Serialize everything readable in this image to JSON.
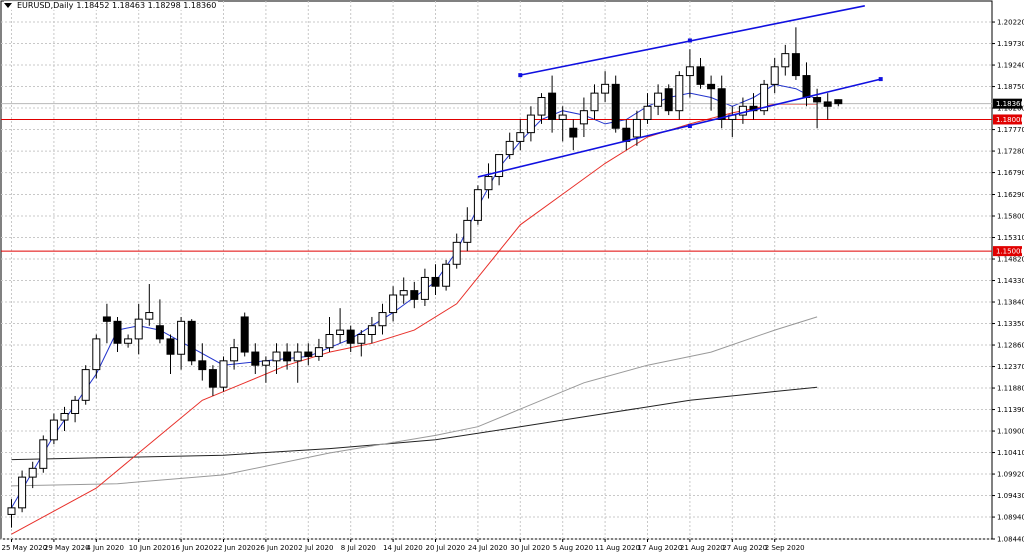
{
  "header": {
    "symbol": "EURUSD,Daily",
    "ohlc": "1.18452 1.18463 1.18298 1.18360"
  },
  "chart_data": {
    "type": "candlestick",
    "symbol": "EURUSD",
    "timeframe": "Daily",
    "ylim": [
      1.0844,
      1.2054
    ],
    "y_ticks": [
      "1.20220",
      "1.19730",
      "1.19240",
      "1.18750",
      "1.18260",
      "1.17770",
      "1.17280",
      "1.16790",
      "1.16290",
      "1.15800",
      "1.15310",
      "1.14820",
      "1.14330",
      "1.13840",
      "1.13350",
      "1.12860",
      "1.12370",
      "1.11880",
      "1.11390",
      "1.10900",
      "1.10410",
      "1.09920",
      "1.09430",
      "1.08940",
      "1.08440"
    ],
    "x_ticks": [
      {
        "label": "25 May 2020",
        "i": 0
      },
      {
        "label": "29 May 2020",
        "i": 4
      },
      {
        "label": "4 Jun 2020",
        "i": 8
      },
      {
        "label": "10 Jun 2020",
        "i": 12
      },
      {
        "label": "16 Jun 2020",
        "i": 16
      },
      {
        "label": "22 Jun 2020",
        "i": 20
      },
      {
        "label": "26 Jun 2020",
        "i": 24
      },
      {
        "label": "2 Jul 2020",
        "i": 28
      },
      {
        "label": "8 Jul 2020",
        "i": 32
      },
      {
        "label": "14 Jul 2020",
        "i": 36
      },
      {
        "label": "20 Jul 2020",
        "i": 40
      },
      {
        "label": "24 Jul 2020",
        "i": 44
      },
      {
        "label": "30 Jul 2020",
        "i": 48
      },
      {
        "label": "5 Aug 2020",
        "i": 52
      },
      {
        "label": "11 Aug 2020",
        "i": 56
      },
      {
        "label": "17 Aug 2020",
        "i": 60
      },
      {
        "label": "21 Aug 2020",
        "i": 64
      },
      {
        "label": "27 Aug 2020",
        "i": 68
      },
      {
        "label": "2 Sep 2020",
        "i": 72
      }
    ],
    "candles": [
      [
        1.09,
        1.0935,
        1.087,
        1.0915
      ],
      [
        1.0915,
        1.1,
        1.0905,
        1.0985
      ],
      [
        1.0985,
        1.102,
        1.096,
        1.1005
      ],
      [
        1.1005,
        1.108,
        1.0995,
        1.107
      ],
      [
        1.107,
        1.113,
        1.106,
        1.1115
      ],
      [
        1.1115,
        1.1145,
        1.109,
        1.113
      ],
      [
        1.113,
        1.117,
        1.111,
        1.116
      ],
      [
        1.116,
        1.124,
        1.115,
        1.123
      ],
      [
        1.123,
        1.131,
        1.121,
        1.13
      ],
      [
        1.135,
        1.138,
        1.129,
        1.134
      ],
      [
        1.134,
        1.135,
        1.127,
        1.129
      ],
      [
        1.129,
        1.131,
        1.128,
        1.13
      ],
      [
        1.13,
        1.138,
        1.1265,
        1.1345
      ],
      [
        1.1345,
        1.1425,
        1.133,
        1.136
      ],
      [
        1.133,
        1.139,
        1.129,
        1.13
      ],
      [
        1.13,
        1.131,
        1.122,
        1.1265
      ],
      [
        1.1265,
        1.135,
        1.123,
        1.134
      ],
      [
        1.134,
        1.1345,
        1.124,
        1.125
      ],
      [
        1.125,
        1.129,
        1.1205,
        1.123
      ],
      [
        1.123,
        1.124,
        1.117,
        1.119
      ],
      [
        1.119,
        1.126,
        1.118,
        1.125
      ],
      [
        1.125,
        1.13,
        1.123,
        1.128
      ],
      [
        1.135,
        1.136,
        1.126,
        1.127
      ],
      [
        1.127,
        1.129,
        1.122,
        1.124
      ],
      [
        1.124,
        1.126,
        1.12,
        1.125
      ],
      [
        1.125,
        1.129,
        1.122,
        1.127
      ],
      [
        1.127,
        1.129,
        1.123,
        1.125
      ],
      [
        1.125,
        1.129,
        1.12,
        1.127
      ],
      [
        1.127,
        1.129,
        1.124,
        1.126
      ],
      [
        1.126,
        1.13,
        1.125,
        1.128
      ],
      [
        1.128,
        1.135,
        1.127,
        1.131
      ],
      [
        1.131,
        1.137,
        1.129,
        1.132
      ],
      [
        1.132,
        1.133,
        1.127,
        1.129
      ],
      [
        1.129,
        1.132,
        1.126,
        1.131
      ],
      [
        1.131,
        1.135,
        1.129,
        1.133
      ],
      [
        1.133,
        1.138,
        1.131,
        1.136
      ],
      [
        1.136,
        1.142,
        1.134,
        1.14
      ],
      [
        1.14,
        1.144,
        1.138,
        1.141
      ],
      [
        1.141,
        1.143,
        1.137,
        1.139
      ],
      [
        1.139,
        1.146,
        1.1375,
        1.144
      ],
      [
        1.144,
        1.147,
        1.14,
        1.142
      ],
      [
        1.142,
        1.148,
        1.141,
        1.147
      ],
      [
        1.147,
        1.154,
        1.146,
        1.152
      ],
      [
        1.152,
        1.16,
        1.15,
        1.157
      ],
      [
        1.157,
        1.165,
        1.156,
        1.164
      ],
      [
        1.164,
        1.17,
        1.162,
        1.167
      ],
      [
        1.167,
        1.172,
        1.165,
        1.172
      ],
      [
        1.172,
        1.177,
        1.171,
        1.175
      ],
      [
        1.175,
        1.18,
        1.173,
        1.177
      ],
      [
        1.177,
        1.183,
        1.175,
        1.181
      ],
      [
        1.181,
        1.186,
        1.179,
        1.185
      ],
      [
        1.186,
        1.19,
        1.177,
        1.18
      ],
      [
        1.18,
        1.183,
        1.175,
        1.181
      ],
      [
        1.178,
        1.18,
        1.173,
        1.176
      ],
      [
        1.179,
        1.185,
        1.176,
        1.182
      ],
      [
        1.182,
        1.188,
        1.18,
        1.186
      ],
      [
        1.186,
        1.191,
        1.184,
        1.188
      ],
      [
        1.188,
        1.19,
        1.177,
        1.178
      ],
      [
        1.178,
        1.18,
        1.173,
        1.175
      ],
      [
        1.176,
        1.182,
        1.174,
        1.18
      ],
      [
        1.18,
        1.186,
        1.179,
        1.183
      ],
      [
        1.183,
        1.188,
        1.181,
        1.186
      ],
      [
        1.187,
        1.188,
        1.181,
        1.182
      ],
      [
        1.182,
        1.191,
        1.18,
        1.19
      ],
      [
        1.19,
        1.196,
        1.185,
        1.192
      ],
      [
        1.192,
        1.194,
        1.187,
        1.188
      ],
      [
        1.188,
        1.19,
        1.182,
        1.187
      ],
      [
        1.187,
        1.19,
        1.178,
        1.18
      ],
      [
        1.18,
        1.183,
        1.176,
        1.181
      ],
      [
        1.181,
        1.185,
        1.179,
        1.183
      ],
      [
        1.183,
        1.186,
        1.18,
        1.182
      ],
      [
        1.182,
        1.189,
        1.181,
        1.188
      ],
      [
        1.188,
        1.194,
        1.186,
        1.192
      ],
      [
        1.192,
        1.197,
        1.19,
        1.195
      ],
      [
        1.195,
        1.201,
        1.189,
        1.19
      ],
      [
        1.19,
        1.193,
        1.183,
        1.185
      ],
      [
        1.185,
        1.187,
        1.178,
        1.184
      ],
      [
        1.184,
        1.186,
        1.18,
        1.183
      ],
      [
        1.1845,
        1.1846,
        1.183,
        1.1836
      ]
    ],
    "horizontal_levels": [
      {
        "label": "1.18000",
        "value": 1.18,
        "color": "#e00000"
      },
      {
        "label": "1.15000",
        "value": 1.15,
        "color": "#e00000"
      }
    ],
    "current_price": {
      "label": "1.18360",
      "value": 1.1836
    },
    "ma_fast": [
      [
        0,
        1.0915
      ],
      [
        4,
        1.108
      ],
      [
        8,
        1.122
      ],
      [
        10,
        1.132
      ],
      [
        12,
        1.133
      ],
      [
        14,
        1.132
      ],
      [
        17,
        1.128
      ],
      [
        20,
        1.124
      ],
      [
        24,
        1.125
      ],
      [
        28,
        1.126
      ],
      [
        32,
        1.13
      ],
      [
        36,
        1.136
      ],
      [
        40,
        1.143
      ],
      [
        42,
        1.15
      ],
      [
        44,
        1.16
      ],
      [
        46,
        1.169
      ],
      [
        48,
        1.175
      ],
      [
        50,
        1.18
      ],
      [
        52,
        1.182
      ],
      [
        54,
        1.181
      ],
      [
        56,
        1.179
      ],
      [
        58,
        1.18
      ],
      [
        60,
        1.183
      ],
      [
        62,
        1.185
      ],
      [
        64,
        1.186
      ],
      [
        66,
        1.185
      ],
      [
        68,
        1.183
      ],
      [
        70,
        1.185
      ],
      [
        72,
        1.188
      ],
      [
        74,
        1.187
      ],
      [
        76,
        1.1845
      ]
    ],
    "ma_mid": [
      [
        0,
        1.0855
      ],
      [
        8,
        1.096
      ],
      [
        14,
        1.108
      ],
      [
        18,
        1.116
      ],
      [
        22,
        1.12
      ],
      [
        26,
        1.124
      ],
      [
        30,
        1.127
      ],
      [
        34,
        1.129
      ],
      [
        38,
        1.132
      ],
      [
        42,
        1.138
      ],
      [
        44,
        1.144
      ],
      [
        46,
        1.15
      ],
      [
        48,
        1.156
      ],
      [
        52,
        1.163
      ],
      [
        56,
        1.17
      ],
      [
        60,
        1.176
      ],
      [
        64,
        1.179
      ],
      [
        68,
        1.1815
      ],
      [
        72,
        1.1835
      ],
      [
        76,
        1.1835
      ]
    ],
    "ma_slow": [
      [
        0,
        1.0965
      ],
      [
        10,
        1.097
      ],
      [
        20,
        1.099
      ],
      [
        30,
        1.104
      ],
      [
        40,
        1.108
      ],
      [
        44,
        1.11
      ],
      [
        48,
        1.114
      ],
      [
        54,
        1.12
      ],
      [
        60,
        1.124
      ],
      [
        66,
        1.127
      ],
      [
        72,
        1.132
      ],
      [
        76,
        1.135
      ]
    ],
    "ma_long": [
      [
        0,
        1.1025
      ],
      [
        10,
        1.103
      ],
      [
        20,
        1.1035
      ],
      [
        30,
        1.105
      ],
      [
        40,
        1.107
      ],
      [
        48,
        1.11
      ],
      [
        56,
        1.113
      ],
      [
        64,
        1.116
      ],
      [
        72,
        1.118
      ],
      [
        76,
        1.119
      ]
    ],
    "channel_upper": [
      [
        48,
        1.1901
      ],
      [
        80.5,
        1.2059
      ]
    ],
    "channel_upper_mid": [
      64,
      1.198
    ],
    "channel_lower": [
      [
        44,
        1.1669
      ],
      [
        82,
        1.1892
      ]
    ],
    "channel_lower_mid": [
      64,
      1.1785
    ]
  }
}
